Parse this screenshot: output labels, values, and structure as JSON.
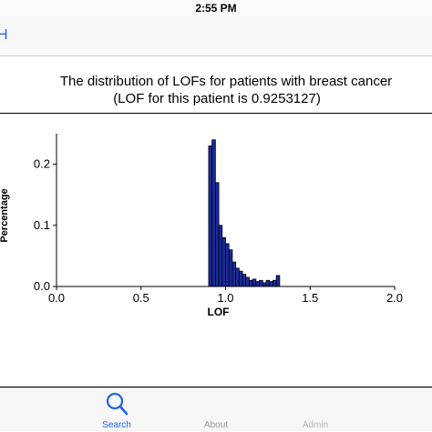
{
  "status_bar": {
    "time": "2:55 PM"
  },
  "nav": {
    "back_label": "H"
  },
  "title": {
    "line1": "The distribution of LOFs for patients with breast cancer",
    "line2": "(LOF for this patient is 0.9253127)"
  },
  "tabs": [
    {
      "label": "Search",
      "icon": "search-icon",
      "active": true
    },
    {
      "label": "About",
      "icon": "info-icon",
      "active": false
    },
    {
      "label": "Admin",
      "icon": "gear-icon",
      "active": false
    }
  ],
  "colors": {
    "accent": "#1d62f0",
    "bar_fill": "#1a2b9c",
    "bar_stroke": "#000000"
  },
  "chart_data": {
    "type": "bar",
    "xlabel": "LOF",
    "ylabel": "Percentage",
    "xlim": [
      0.0,
      2.0
    ],
    "ylim": [
      0.0,
      0.25
    ],
    "xticks": [
      "0.0",
      "0.5",
      "1.0",
      "1.5",
      "2.0"
    ],
    "yticks": [
      "0.0",
      "0.1",
      "0.2"
    ],
    "grid": false,
    "bin_width": 0.02,
    "x": [
      0.91,
      0.93,
      0.95,
      0.97,
      0.99,
      1.01,
      1.03,
      1.05,
      1.07,
      1.09,
      1.11,
      1.13,
      1.15,
      1.17,
      1.19,
      1.21,
      1.23,
      1.25,
      1.27,
      1.29,
      1.31
    ],
    "values": [
      0.23,
      0.24,
      0.17,
      0.1,
      0.08,
      0.07,
      0.06,
      0.04,
      0.03,
      0.025,
      0.02,
      0.015,
      0.01,
      0.012,
      0.008,
      0.01,
      0.006,
      0.01,
      0.008,
      0.01,
      0.018
    ]
  }
}
